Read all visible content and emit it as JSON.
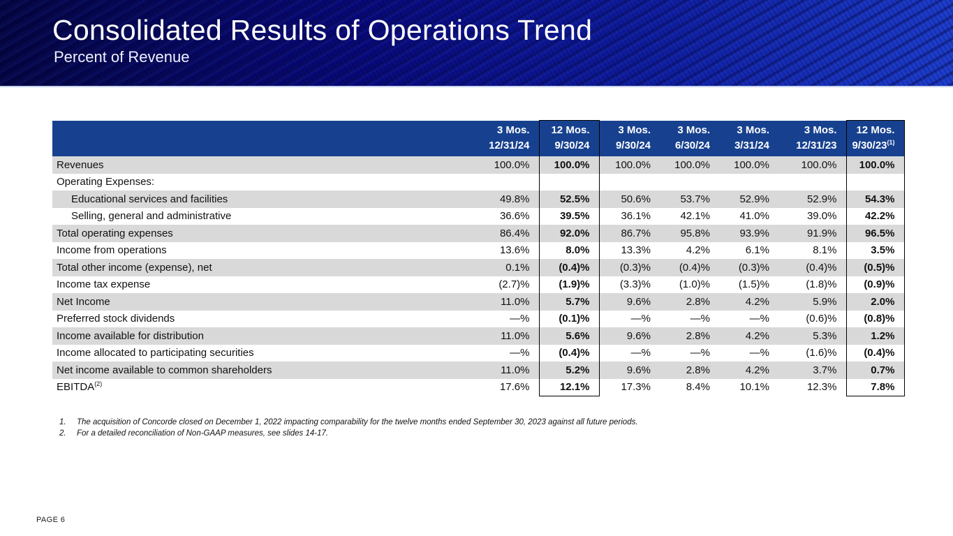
{
  "slide": {
    "title": "Consolidated Results of Operations Trend",
    "subtitle": "Percent of Revenue",
    "page_label": "PAGE 6"
  },
  "colors": {
    "header_bg": "#17418F",
    "row_shaded": "#D9D9D9",
    "banner_dark": "#04043f",
    "banner_bright": "#1d3ecf"
  },
  "table": {
    "columns": [
      {
        "period": "3 Mos.",
        "date": "12/31/24",
        "boxed": false
      },
      {
        "period": "12 Mos.",
        "date": "9/30/24",
        "boxed": true
      },
      {
        "period": "3 Mos.",
        "date": "9/30/24",
        "boxed": false
      },
      {
        "period": "3 Mos.",
        "date": "6/30/24",
        "boxed": false
      },
      {
        "period": "3 Mos.",
        "date": "3/31/24",
        "boxed": false
      },
      {
        "period": "3 Mos.",
        "date": "12/31/23",
        "boxed": false
      },
      {
        "period": "12 Mos.",
        "date": "9/30/23",
        "date_superscript": "(1)",
        "boxed": true
      }
    ],
    "rows": [
      {
        "label": "Revenues",
        "indent": false,
        "shaded": true,
        "values": [
          "100.0%",
          "100.0%",
          "100.0%",
          "100.0%",
          "100.0%",
          "100.0%",
          "100.0%"
        ]
      },
      {
        "label": "Operating Expenses:",
        "indent": false,
        "shaded": false,
        "values": [
          "",
          "",
          "",
          "",
          "",
          "",
          ""
        ]
      },
      {
        "label": "Educational services and facilities",
        "indent": true,
        "shaded": true,
        "values": [
          "49.8%",
          "52.5%",
          "50.6%",
          "53.7%",
          "52.9%",
          "52.9%",
          "54.3%"
        ]
      },
      {
        "label": "Selling, general and administrative",
        "indent": true,
        "shaded": false,
        "values": [
          "36.6%",
          "39.5%",
          "36.1%",
          "42.1%",
          "41.0%",
          "39.0%",
          "42.2%"
        ]
      },
      {
        "label": "Total operating expenses",
        "indent": false,
        "shaded": true,
        "values": [
          "86.4%",
          "92.0%",
          "86.7%",
          "95.8%",
          "93.9%",
          "91.9%",
          "96.5%"
        ]
      },
      {
        "label": "Income from operations",
        "indent": false,
        "shaded": false,
        "values": [
          "13.6%",
          "8.0%",
          "13.3%",
          "4.2%",
          "6.1%",
          "8.1%",
          "3.5%"
        ]
      },
      {
        "label": "Total other income (expense), net",
        "indent": false,
        "shaded": true,
        "values": [
          "0.1%",
          "(0.4)%",
          "(0.3)%",
          "(0.4)%",
          "(0.3)%",
          "(0.4)%",
          "(0.5)%"
        ]
      },
      {
        "label": "Income tax expense",
        "indent": false,
        "shaded": false,
        "values": [
          "(2.7)%",
          "(1.9)%",
          "(3.3)%",
          "(1.0)%",
          "(1.5)%",
          "(1.8)%",
          "(0.9)%"
        ]
      },
      {
        "label": "Net Income",
        "indent": false,
        "shaded": true,
        "values": [
          "11.0%",
          "5.7%",
          "9.6%",
          "2.8%",
          "4.2%",
          "5.9%",
          "2.0%"
        ]
      },
      {
        "label": "Preferred stock dividends",
        "indent": false,
        "shaded": false,
        "values": [
          "—%",
          "(0.1)%",
          "—%",
          "—%",
          "—%",
          "(0.6)%",
          "(0.8)%"
        ]
      },
      {
        "label": "Income available for distribution",
        "indent": false,
        "shaded": true,
        "values": [
          "11.0%",
          "5.6%",
          "9.6%",
          "2.8%",
          "4.2%",
          "5.3%",
          "1.2%"
        ]
      },
      {
        "label": "Income allocated to participating securities",
        "indent": false,
        "shaded": false,
        "values": [
          "—%",
          "(0.4)%",
          "—%",
          "—%",
          "—%",
          "(1.6)%",
          "(0.4)%"
        ]
      },
      {
        "label": "Net income available to common shareholders",
        "indent": false,
        "shaded": true,
        "values": [
          "11.0%",
          "5.2%",
          "9.6%",
          "2.8%",
          "4.2%",
          "3.7%",
          "0.7%"
        ]
      },
      {
        "label": "EBITDA",
        "label_superscript": "(2)",
        "indent": false,
        "shaded": false,
        "values": [
          "17.6%",
          "12.1%",
          "17.3%",
          "8.4%",
          "10.1%",
          "12.3%",
          "7.8%"
        ]
      }
    ]
  },
  "footnotes": [
    {
      "number": "1.",
      "text": "The acquisition of Concorde closed on December 1, 2022 impacting comparability for the twelve months ended September 30, 2023 against all future periods."
    },
    {
      "number": "2.",
      "text": "For a detailed reconciliation of Non-GAAP measures, see slides 14-17."
    }
  ]
}
